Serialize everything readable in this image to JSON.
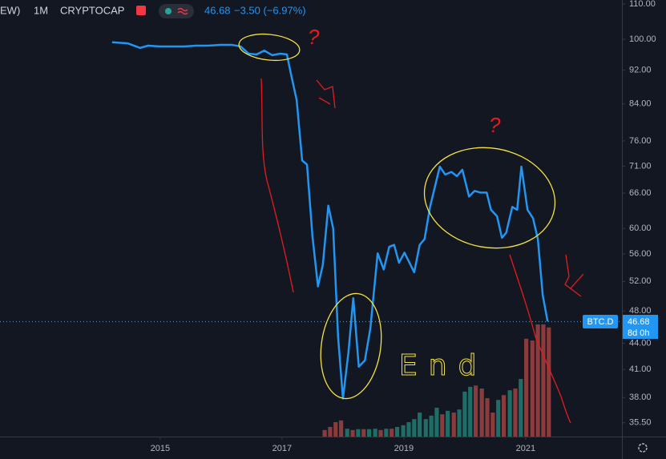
{
  "chart_data": {
    "type": "line",
    "header": {
      "symbol": "EW)",
      "interval": "1M",
      "source": "CRYPTOCAP",
      "last_label": "46.68",
      "change": "−3.50 (−6.97%)"
    },
    "price_tag": {
      "name": "BTC.D",
      "countdown": "8d 0h"
    },
    "annotations": [
      "?",
      "?",
      "End"
    ],
    "log_y": true,
    "grid": false,
    "xlim": [
      2012.37,
      2022.58
    ],
    "xticks": [
      2015,
      2017,
      2019,
      2021
    ],
    "ylim": [
      34.2,
      111.2
    ],
    "yticks": [
      {
        "value": 110,
        "label": "110.00"
      },
      {
        "value": 100,
        "label": "100.00"
      },
      {
        "value": 92,
        "label": "92.00"
      },
      {
        "value": 84,
        "label": "84.00"
      },
      {
        "value": 76,
        "label": "76.00"
      },
      {
        "value": 71,
        "label": "71.00"
      },
      {
        "value": 66,
        "label": "66.00"
      },
      {
        "value": 60,
        "label": "60.00"
      },
      {
        "value": 56,
        "label": "56.00"
      },
      {
        "value": 52,
        "label": "52.00"
      },
      {
        "value": 48,
        "label": "48.00"
      },
      {
        "value": 44,
        "label": "44.00"
      },
      {
        "value": 41,
        "label": "41.00"
      },
      {
        "value": 38,
        "label": "38.00"
      },
      {
        "value": 35.5,
        "label": "35.50"
      }
    ],
    "series": [
      {
        "color": "#2196f3",
        "x": [
          2014.21,
          2014.47,
          2014.67,
          2014.8,
          2015.0,
          2015.2,
          2015.39,
          2015.59,
          2015.79,
          2015.99,
          2016.18,
          2016.32,
          2016.45,
          2016.58,
          2016.71,
          2016.84,
          2016.97,
          2017.08,
          2017.14,
          2017.24,
          2017.33,
          2017.41,
          2017.5,
          2017.59,
          2017.67,
          2017.76,
          2017.84,
          2017.92,
          2018.0,
          2018.09,
          2018.17,
          2018.26,
          2018.36,
          2018.45,
          2018.57,
          2018.67,
          2018.76,
          2018.84,
          2018.92,
          2019.01,
          2019.17,
          2019.26,
          2019.34,
          2019.43,
          2019.59,
          2019.68,
          2019.78,
          2019.87,
          2019.96,
          2020.07,
          2020.16,
          2020.26,
          2020.36,
          2020.43,
          2020.53,
          2020.61,
          2020.68,
          2020.78,
          2020.86,
          2020.93,
          2021.03,
          2021.12,
          2021.2,
          2021.28,
          2021.36
        ],
        "values": [
          99.2,
          98.9,
          97.7,
          98.3,
          98.1,
          98.1,
          98.1,
          98.3,
          98.3,
          98.5,
          98.5,
          98.1,
          96.2,
          96.0,
          97.0,
          95.8,
          96.2,
          96.0,
          91.5,
          84.9,
          72.1,
          71.3,
          58.7,
          51.3,
          54.4,
          63.8,
          60.0,
          44.8,
          37.9,
          42.9,
          49.7,
          41.3,
          42.0,
          45.8,
          56.1,
          53.7,
          57.1,
          57.4,
          54.7,
          56.2,
          53.3,
          57.4,
          58.3,
          63.6,
          70.9,
          69.4,
          69.9,
          69.1,
          70.3,
          65.4,
          66.4,
          66.1,
          66.1,
          63.1,
          62.0,
          58.5,
          59.3,
          63.6,
          63.1,
          70.9,
          63.1,
          61.7,
          58.3,
          50.1,
          46.68
        ]
      }
    ],
    "volume": {
      "y2lim": [
        0,
        100
      ],
      "x": [
        2017.7,
        2017.79,
        2017.88,
        2017.97,
        2018.07,
        2018.16,
        2018.25,
        2018.34,
        2018.43,
        2018.53,
        2018.62,
        2018.71,
        2018.8,
        2018.89,
        2018.99,
        2019.08,
        2019.17,
        2019.26,
        2019.36,
        2019.45,
        2019.54,
        2019.63,
        2019.72,
        2019.82,
        2019.91,
        2020.0,
        2020.09,
        2020.18,
        2020.28,
        2020.37,
        2020.46,
        2020.55,
        2020.64,
        2020.74,
        2020.83,
        2020.92,
        2021.01,
        2021.11,
        2021.2,
        2021.29,
        2021.38
      ],
      "values": [
        1.5,
        2.2,
        3.3,
        3.7,
        1.8,
        1.5,
        1.7,
        1.7,
        1.7,
        1.8,
        1.5,
        1.8,
        1.8,
        2.2,
        2.6,
        3.3,
        4.0,
        5.5,
        4.0,
        4.8,
        6.6,
        5.1,
        5.9,
        5.5,
        6.2,
        10.3,
        11.4,
        11.7,
        11.0,
        8.8,
        5.5,
        8.4,
        9.5,
        10.6,
        11.0,
        13.2,
        22.4,
        22.0,
        25.7,
        25.7,
        25.0
      ],
      "colors": [
        "#8c3b3c",
        "#8c3b3c",
        "#8c3b3c",
        "#8c3b3c",
        "#1e6e68",
        "#8c3b3c",
        "#1e6e68",
        "#8c3b3c",
        "#1e6e68",
        "#1e6e68",
        "#8c3b3c",
        "#1e6e68",
        "#8c3b3c",
        "#1e6e68",
        "#1e6e68",
        "#1e6e68",
        "#1e6e68",
        "#1e6e68",
        "#1e6e68",
        "#1e6e68",
        "#1e6e68",
        "#8c3b3c",
        "#1e6e68",
        "#8c3b3c",
        "#1e6e68",
        "#1e6e68",
        "#1e6e68",
        "#8c3b3c",
        "#8c3b3c",
        "#8c3b3c",
        "#8c3b3c",
        "#1e6e68",
        "#8c3b3c",
        "#1e6e68",
        "#8c3b3c",
        "#1e6e68",
        "#8c3b3c",
        "#8c3b3c",
        "#8c3b3c",
        "#8c3b3c",
        "#8c3b3c"
      ]
    }
  }
}
